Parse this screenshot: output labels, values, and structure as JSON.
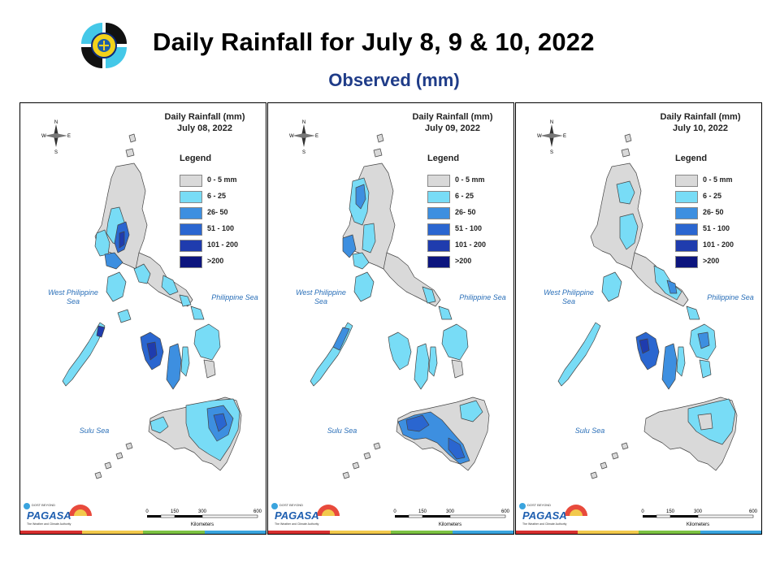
{
  "header": {
    "title": "Daily Rainfall for July 8, 9 & 10, 2022",
    "subtitle": "Observed (mm)"
  },
  "legend": {
    "title": "Legend",
    "classes": [
      {
        "label": "0 - 5 mm",
        "color": "#d9d9d9"
      },
      {
        "label": "6 - 25",
        "color": "#78dcf6"
      },
      {
        "label": "26- 50",
        "color": "#3d8fe0"
      },
      {
        "label": "51 - 100",
        "color": "#2a66d0"
      },
      {
        "label": "101 - 200",
        "color": "#1f3cae"
      },
      {
        "label": ">200",
        "color": "#0c157e"
      }
    ]
  },
  "panels": [
    {
      "title_line1": "Daily Rainfall (mm)",
      "title_line2": "July 08, 2022"
    },
    {
      "title_line1": "Daily Rainfall (mm)",
      "title_line2": "July 09, 2022"
    },
    {
      "title_line1": "Daily Rainfall (mm)",
      "title_line2": "July 10, 2022"
    }
  ],
  "seas": {
    "west": "West Philippine Sea",
    "east": "Philippine Sea",
    "south": "Sulu Sea"
  },
  "compass": {
    "n": "N",
    "s": "S",
    "e": "E",
    "w": "W"
  },
  "scale": {
    "ticks": [
      "0",
      "150",
      "300",
      "600"
    ],
    "unit": "Kilometers"
  },
  "brand": {
    "name": "PAGASA",
    "tagline": "The Weather and Climate Authority",
    "top": "DOST BEYOND"
  },
  "strip_colors": [
    "#d62f2f",
    "#f2c94c",
    "#7cc242",
    "#3aa4de"
  ]
}
